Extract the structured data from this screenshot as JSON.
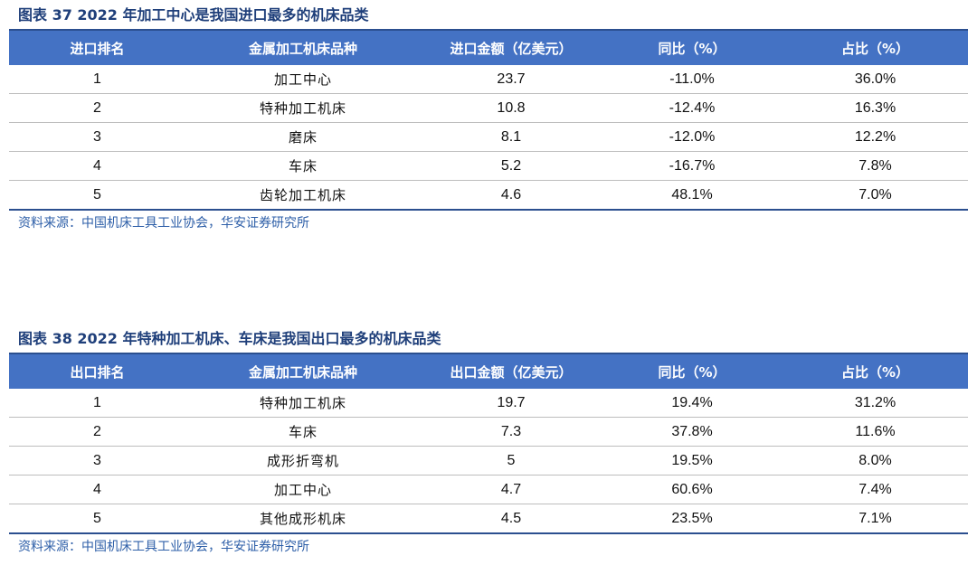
{
  "table1": {
    "title": "图表 37  2022 年加工中心是我国进口最多的机床品类",
    "headers": [
      "进口排名",
      "金属加工机床品种",
      "进口金额（亿美元）",
      "同比（%）",
      "占比（%）"
    ],
    "rows": [
      [
        "1",
        "加工中心",
        "23.7",
        "-11.0%",
        "36.0%"
      ],
      [
        "2",
        "特种加工机床",
        "10.8",
        "-12.4%",
        "16.3%"
      ],
      [
        "3",
        "磨床",
        "8.1",
        "-12.0%",
        "12.2%"
      ],
      [
        "4",
        "车床",
        "5.2",
        "-16.7%",
        "7.8%"
      ],
      [
        "5",
        "齿轮加工机床",
        "4.6",
        "48.1%",
        "7.0%"
      ]
    ],
    "source": "资料来源：中国机床工具工业协会，华安证券研究所"
  },
  "table2": {
    "title": "图表 38  2022 年特种加工机床、车床是我国出口最多的机床品类",
    "headers": [
      "出口排名",
      "金属加工机床品种",
      "出口金额（亿美元）",
      "同比（%）",
      "占比（%）"
    ],
    "rows": [
      [
        "1",
        "特种加工机床",
        "19.7",
        "19.4%",
        "31.2%"
      ],
      [
        "2",
        "车床",
        "7.3",
        "37.8%",
        "11.6%"
      ],
      [
        "3",
        "成形折弯机",
        "5",
        "19.5%",
        "8.0%"
      ],
      [
        "4",
        "加工中心",
        "4.7",
        "60.6%",
        "7.4%"
      ],
      [
        "5",
        "其他成形机床",
        "4.5",
        "23.5%",
        "7.1%"
      ]
    ],
    "source": "资料来源：中国机床工具工业协会，华安证券研究所"
  }
}
